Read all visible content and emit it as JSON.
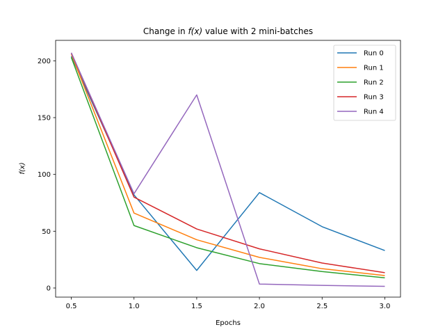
{
  "chart_data": {
    "type": "line",
    "title_prefix": "Change in ",
    "title_math": "f(x)",
    "title_suffix": " value with 2 mini-batches",
    "xlabel": "Epochs",
    "ylabel": "f(x)",
    "x": [
      0.5,
      1.0,
      1.5,
      2.0,
      2.5,
      3.0
    ],
    "x_ticks": [
      "0.5",
      "1.0",
      "1.5",
      "2.0",
      "2.5",
      "3.0"
    ],
    "y_ticks": [
      "0",
      "50",
      "100",
      "150",
      "200"
    ],
    "xlim": [
      0.375,
      3.125
    ],
    "ylim": [
      -8,
      218
    ],
    "grid": false,
    "legend_position": "top-right",
    "series": [
      {
        "name": "Run 0",
        "color": "#1f77b4",
        "values": [
          204,
          82,
          15.5,
          84,
          54,
          33
        ]
      },
      {
        "name": "Run 1",
        "color": "#ff7f0e",
        "values": [
          206,
          66,
          42.5,
          27,
          17,
          11
        ]
      },
      {
        "name": "Run 2",
        "color": "#2ca02c",
        "values": [
          203,
          55,
          35.5,
          21.5,
          14.5,
          9
        ]
      },
      {
        "name": "Run 3",
        "color": "#d62728",
        "values": [
          207,
          80,
          52,
          34.5,
          22,
          13.5
        ]
      },
      {
        "name": "Run 4",
        "color": "#9467bd",
        "values": [
          207,
          83,
          170,
          3.5,
          2.3,
          1.5
        ]
      }
    ]
  }
}
